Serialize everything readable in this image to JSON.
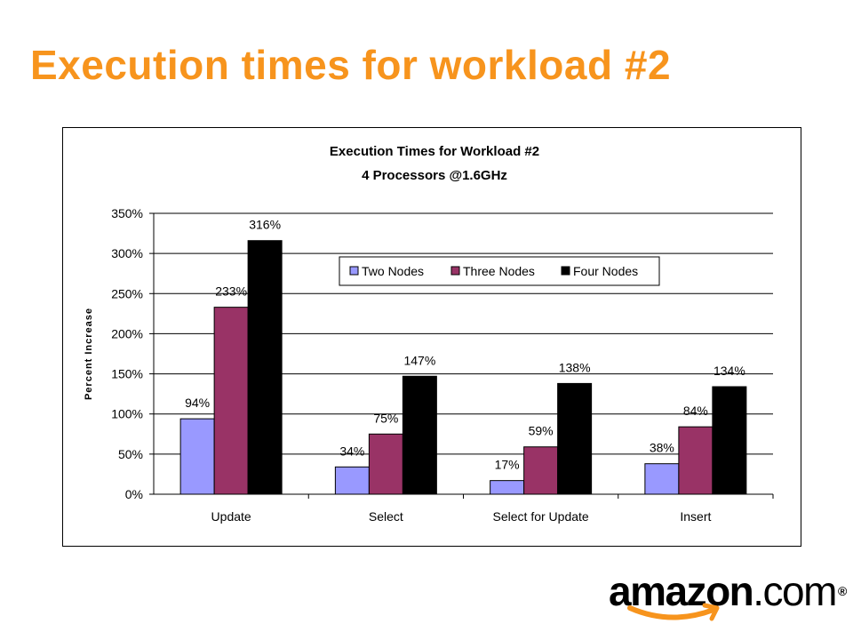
{
  "slide": {
    "title": "Execution times for workload #2"
  },
  "logo": {
    "word_bold": "amazon",
    "word_tail": ".com",
    "registered": "®",
    "smile_color": "#f7941d"
  },
  "colors": {
    "title": "#f7941d",
    "series": [
      "#9999ff",
      "#993366",
      "#000000"
    ]
  },
  "chart_data": {
    "type": "bar",
    "title": "Execution Times for Workload #2",
    "subtitle": "4 Processors @1.6GHz",
    "xlabel": "",
    "ylabel": "Percent Increase",
    "categories": [
      "Update",
      "Select",
      "Select for Update",
      "Insert"
    ],
    "series": [
      {
        "name": "Two Nodes",
        "values": [
          94,
          34,
          17,
          38
        ],
        "labels": [
          "94%",
          "34%",
          "17%",
          "38%"
        ],
        "color": "#9999ff"
      },
      {
        "name": "Three Nodes",
        "values": [
          233,
          75,
          59,
          84
        ],
        "labels": [
          "233%",
          "75%",
          "59%",
          "84%"
        ],
        "color": "#993366"
      },
      {
        "name": "Four Nodes",
        "values": [
          316,
          147,
          138,
          134
        ],
        "labels": [
          "316%",
          "147%",
          "138%",
          "134%"
        ],
        "color": "#000000"
      }
    ],
    "ylim": [
      0,
      350
    ],
    "yticks": [
      0,
      50,
      100,
      150,
      200,
      250,
      300,
      350
    ],
    "ytick_labels": [
      "0%",
      "50%",
      "100%",
      "150%",
      "200%",
      "250%",
      "300%",
      "350%"
    ],
    "grid": true,
    "legend_position": "top-center"
  }
}
